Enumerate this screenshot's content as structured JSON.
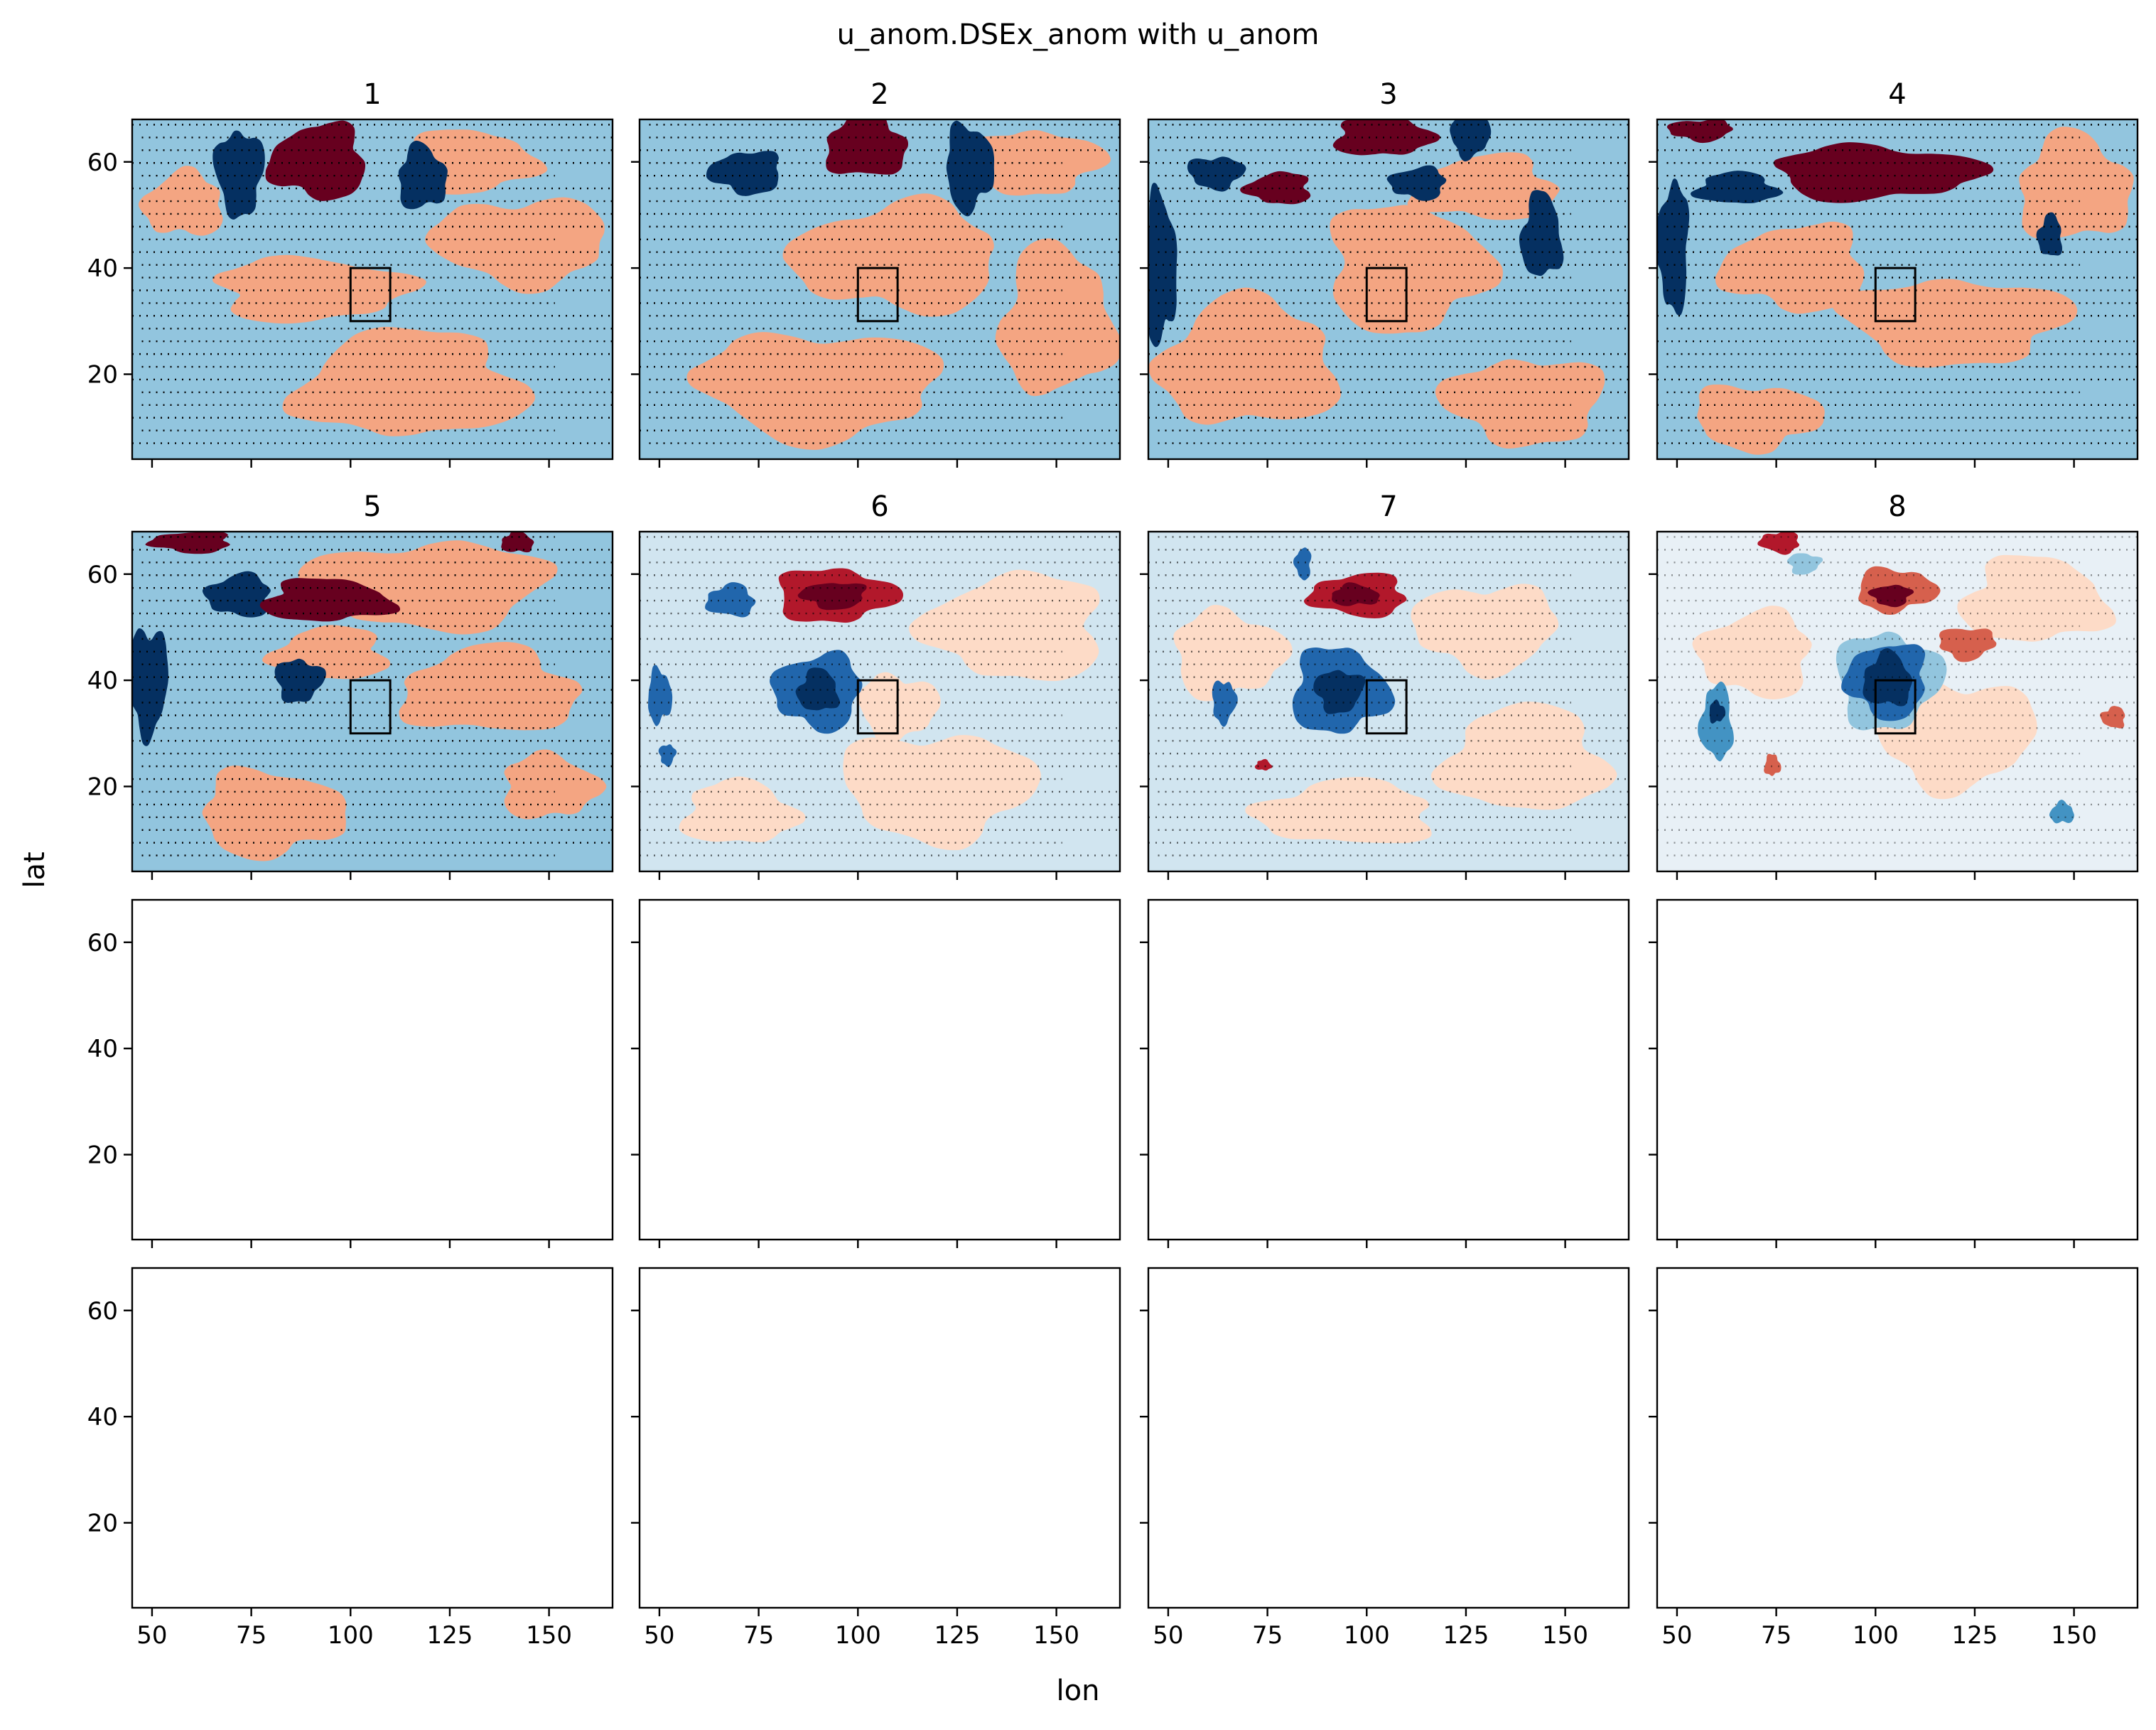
{
  "chart_data": {
    "type": "heatmap",
    "title": "u_anom.DSEx_anom with u_anom",
    "xlabel": "lon",
    "ylabel": "lat",
    "xlim": [
      45,
      166
    ],
    "ylim": [
      4,
      68
    ],
    "xticks": [
      50,
      75,
      100,
      125,
      150
    ],
    "yticks": [
      20,
      40,
      60
    ],
    "grid": false,
    "box_region": {
      "lon": [
        100,
        110
      ],
      "lat": [
        30,
        40
      ]
    },
    "colormap": [
      "#053061",
      "#2166ac",
      "#4393c3",
      "#92c5de",
      "#d1e5f0",
      "#f7f7f7",
      "#fddbc7",
      "#f4a582",
      "#d6604d",
      "#b2182b",
      "#67001f"
    ],
    "panels": [
      {
        "title": "1",
        "background": "#92c5de",
        "stipple_alpha": 1.0,
        "blobs": [
          {
            "lon": 115,
            "lat": 18,
            "rlon": 28,
            "rlat": 10,
            "color": "#f4a582"
          },
          {
            "lon": 90,
            "lat": 36,
            "rlon": 24,
            "rlat": 6,
            "color": "#f4a582"
          },
          {
            "lon": 143,
            "lat": 45,
            "rlon": 22,
            "rlat": 8,
            "color": "#f4a582"
          },
          {
            "lon": 58,
            "lat": 52,
            "rlon": 10,
            "rlat": 6,
            "color": "#f4a582"
          },
          {
            "lon": 130,
            "lat": 60,
            "rlon": 16,
            "rlat": 6,
            "color": "#f4a582"
          },
          {
            "lon": 72,
            "lat": 58,
            "rlon": 6,
            "rlat": 8,
            "color": "#053061"
          },
          {
            "lon": 92,
            "lat": 60,
            "rlon": 12,
            "rlat": 7,
            "color": "#67001f"
          },
          {
            "lon": 118,
            "lat": 57,
            "rlon": 6,
            "rlat": 6,
            "color": "#053061"
          }
        ]
      },
      {
        "title": "2",
        "background": "#92c5de",
        "stipple_alpha": 1.0,
        "blobs": [
          {
            "lon": 90,
            "lat": 18,
            "rlon": 30,
            "rlat": 10,
            "color": "#f4a582"
          },
          {
            "lon": 110,
            "lat": 42,
            "rlon": 26,
            "rlat": 10,
            "color": "#f4a582"
          },
          {
            "lon": 150,
            "lat": 30,
            "rlon": 14,
            "rlat": 14,
            "color": "#f4a582"
          },
          {
            "lon": 145,
            "lat": 60,
            "rlon": 16,
            "rlat": 6,
            "color": "#f4a582"
          },
          {
            "lon": 72,
            "lat": 58,
            "rlon": 9,
            "rlat": 4,
            "color": "#053061"
          },
          {
            "lon": 102,
            "lat": 63,
            "rlon": 10,
            "rlat": 6,
            "color": "#67001f"
          },
          {
            "lon": 128,
            "lat": 59,
            "rlon": 6,
            "rlat": 8,
            "color": "#053061"
          }
        ]
      },
      {
        "title": "3",
        "background": "#92c5de",
        "stipple_alpha": 1.0,
        "blobs": [
          {
            "lon": 70,
            "lat": 22,
            "rlon": 22,
            "rlat": 12,
            "color": "#f4a582"
          },
          {
            "lon": 110,
            "lat": 40,
            "rlon": 20,
            "rlat": 12,
            "color": "#f4a582"
          },
          {
            "lon": 140,
            "lat": 15,
            "rlon": 20,
            "rlat": 8,
            "color": "#f4a582"
          },
          {
            "lon": 130,
            "lat": 55,
            "rlon": 18,
            "rlat": 6,
            "color": "#f4a582"
          },
          {
            "lon": 48,
            "lat": 40,
            "rlon": 4,
            "rlat": 14,
            "color": "#053061"
          },
          {
            "lon": 62,
            "lat": 58,
            "rlon": 7,
            "rlat": 3,
            "color": "#053061"
          },
          {
            "lon": 78,
            "lat": 55,
            "rlon": 8,
            "rlat": 3,
            "color": "#67001f"
          },
          {
            "lon": 104,
            "lat": 65,
            "rlon": 12,
            "rlat": 4,
            "color": "#67001f"
          },
          {
            "lon": 126,
            "lat": 65,
            "rlon": 5,
            "rlat": 4,
            "color": "#053061"
          },
          {
            "lon": 113,
            "lat": 56,
            "rlon": 7,
            "rlat": 3,
            "color": "#053061"
          },
          {
            "lon": 144,
            "lat": 46,
            "rlon": 5,
            "rlat": 8,
            "color": "#053061"
          }
        ]
      },
      {
        "title": "4",
        "background": "#92c5de",
        "stipple_alpha": 1.0,
        "blobs": [
          {
            "lon": 120,
            "lat": 30,
            "rlon": 28,
            "rlat": 8,
            "color": "#f4a582"
          },
          {
            "lon": 80,
            "lat": 40,
            "rlon": 18,
            "rlat": 8,
            "color": "#f4a582"
          },
          {
            "lon": 150,
            "lat": 55,
            "rlon": 14,
            "rlat": 10,
            "color": "#f4a582"
          },
          {
            "lon": 70,
            "lat": 12,
            "rlon": 16,
            "rlat": 6,
            "color": "#f4a582"
          },
          {
            "lon": 49,
            "lat": 44,
            "rlon": 4,
            "rlat": 12,
            "color": "#053061"
          },
          {
            "lon": 65,
            "lat": 55,
            "rlon": 10,
            "rlat": 3,
            "color": "#053061"
          },
          {
            "lon": 100,
            "lat": 58,
            "rlon": 26,
            "rlat": 5,
            "color": "#67001f"
          },
          {
            "lon": 56,
            "lat": 66,
            "rlon": 8,
            "rlat": 2,
            "color": "#67001f"
          },
          {
            "lon": 144,
            "lat": 46,
            "rlon": 3,
            "rlat": 4,
            "color": "#053061"
          }
        ]
      },
      {
        "title": "5",
        "background": "#92c5de",
        "stipple_alpha": 1.0,
        "blobs": [
          {
            "lon": 135,
            "lat": 38,
            "rlon": 22,
            "rlat": 8,
            "color": "#f4a582"
          },
          {
            "lon": 80,
            "lat": 15,
            "rlon": 18,
            "rlat": 8,
            "color": "#f4a582"
          },
          {
            "lon": 120,
            "lat": 58,
            "rlon": 30,
            "rlat": 8,
            "color": "#f4a582"
          },
          {
            "lon": 95,
            "lat": 45,
            "rlon": 14,
            "rlat": 5,
            "color": "#f4a582"
          },
          {
            "lon": 150,
            "lat": 20,
            "rlon": 12,
            "rlat": 6,
            "color": "#f4a582"
          },
          {
            "lon": 49,
            "lat": 40,
            "rlon": 5,
            "rlat": 10,
            "color": "#053061"
          },
          {
            "lon": 72,
            "lat": 56,
            "rlon": 8,
            "rlat": 4,
            "color": "#053061"
          },
          {
            "lon": 94,
            "lat": 55,
            "rlon": 16,
            "rlat": 4,
            "color": "#67001f"
          },
          {
            "lon": 87,
            "lat": 40,
            "rlon": 6,
            "rlat": 4,
            "color": "#053061"
          },
          {
            "lon": 60,
            "lat": 66,
            "rlon": 10,
            "rlat": 2,
            "color": "#67001f"
          },
          {
            "lon": 142,
            "lat": 66,
            "rlon": 4,
            "rlat": 2,
            "color": "#67001f"
          }
        ]
      },
      {
        "title": "6",
        "background": "#d1e5f0",
        "stipple_alpha": 0.6,
        "blobs": [
          {
            "lon": 120,
            "lat": 20,
            "rlon": 24,
            "rlat": 10,
            "color": "#fddbc7"
          },
          {
            "lon": 140,
            "lat": 50,
            "rlon": 22,
            "rlat": 10,
            "color": "#fddbc7"
          },
          {
            "lon": 70,
            "lat": 15,
            "rlon": 14,
            "rlat": 6,
            "color": "#fddbc7"
          },
          {
            "lon": 110,
            "lat": 35,
            "rlon": 10,
            "rlat": 6,
            "color": "#fddbc7"
          },
          {
            "lon": 90,
            "lat": 38,
            "rlon": 11,
            "rlat": 7,
            "color": "#2166ac"
          },
          {
            "lon": 90,
            "lat": 38,
            "rlon": 5,
            "rlat": 4,
            "color": "#053061"
          },
          {
            "lon": 94,
            "lat": 56,
            "rlon": 15,
            "rlat": 5,
            "color": "#b2182b"
          },
          {
            "lon": 94,
            "lat": 56,
            "rlon": 8,
            "rlat": 2.5,
            "color": "#67001f"
          },
          {
            "lon": 68,
            "lat": 55,
            "rlon": 6,
            "rlat": 3,
            "color": "#2166ac"
          },
          {
            "lon": 50,
            "lat": 37,
            "rlon": 3,
            "rlat": 5,
            "color": "#2166ac"
          },
          {
            "lon": 52,
            "lat": 26,
            "rlon": 2,
            "rlat": 2,
            "color": "#2166ac"
          }
        ]
      },
      {
        "title": "7",
        "background": "#d1e5f0",
        "stipple_alpha": 0.6,
        "blobs": [
          {
            "lon": 140,
            "lat": 25,
            "rlon": 20,
            "rlat": 10,
            "color": "#fddbc7"
          },
          {
            "lon": 65,
            "lat": 45,
            "rlon": 14,
            "rlat": 8,
            "color": "#fddbc7"
          },
          {
            "lon": 130,
            "lat": 50,
            "rlon": 18,
            "rlat": 8,
            "color": "#fddbc7"
          },
          {
            "lon": 95,
            "lat": 15,
            "rlon": 22,
            "rlat": 6,
            "color": "#fddbc7"
          },
          {
            "lon": 93,
            "lat": 38,
            "rlon": 12,
            "rlat": 8,
            "color": "#2166ac"
          },
          {
            "lon": 93,
            "lat": 38,
            "rlon": 6,
            "rlat": 4,
            "color": "#053061"
          },
          {
            "lon": 98,
            "lat": 56,
            "rlon": 12,
            "rlat": 4,
            "color": "#b2182b"
          },
          {
            "lon": 97,
            "lat": 56,
            "rlon": 6,
            "rlat": 2,
            "color": "#67001f"
          },
          {
            "lon": 64,
            "lat": 36,
            "rlon": 3,
            "rlat": 4,
            "color": "#2166ac"
          },
          {
            "lon": 84,
            "lat": 62,
            "rlon": 2,
            "rlat": 3,
            "color": "#2166ac"
          },
          {
            "lon": 74,
            "lat": 24,
            "rlon": 2,
            "rlat": 1,
            "color": "#b2182b"
          }
        ]
      },
      {
        "title": "8",
        "background": "#e8f0f6",
        "stipple_alpha": 0.4,
        "blobs": [
          {
            "lon": 120,
            "lat": 30,
            "rlon": 20,
            "rlat": 10,
            "color": "#fddbc7"
          },
          {
            "lon": 70,
            "lat": 45,
            "rlon": 14,
            "rlat": 8,
            "color": "#fddbc7"
          },
          {
            "lon": 140,
            "lat": 55,
            "rlon": 18,
            "rlat": 8,
            "color": "#fddbc7"
          },
          {
            "lon": 103,
            "lat": 40,
            "rlon": 13,
            "rlat": 9,
            "color": "#92c5de"
          },
          {
            "lon": 103,
            "lat": 40,
            "rlon": 10,
            "rlat": 7,
            "color": "#2166ac"
          },
          {
            "lon": 103,
            "lat": 40,
            "rlon": 6,
            "rlat": 5,
            "color": "#053061"
          },
          {
            "lon": 105,
            "lat": 57,
            "rlon": 10,
            "rlat": 4,
            "color": "#d6604d"
          },
          {
            "lon": 104,
            "lat": 56,
            "rlon": 5,
            "rlat": 2,
            "color": "#67001f"
          },
          {
            "lon": 60,
            "lat": 32,
            "rlon": 4,
            "rlat": 7,
            "color": "#4393c3"
          },
          {
            "lon": 60,
            "lat": 34,
            "rlon": 2,
            "rlat": 2,
            "color": "#053061"
          },
          {
            "lon": 123,
            "lat": 47,
            "rlon": 7,
            "rlat": 3,
            "color": "#d6604d"
          },
          {
            "lon": 160,
            "lat": 33,
            "rlon": 3,
            "rlat": 2,
            "color": "#d6604d"
          },
          {
            "lon": 74,
            "lat": 24,
            "rlon": 2,
            "rlat": 2,
            "color": "#d6604d"
          },
          {
            "lon": 82,
            "lat": 62,
            "rlon": 4,
            "rlat": 2,
            "color": "#92c5de"
          },
          {
            "lon": 76,
            "lat": 66,
            "rlon": 5,
            "rlat": 2,
            "color": "#b2182b"
          },
          {
            "lon": 147,
            "lat": 15,
            "rlon": 3,
            "rlat": 2,
            "color": "#4393c3"
          }
        ]
      },
      {
        "title": "",
        "empty": true
      },
      {
        "title": "",
        "empty": true
      },
      {
        "title": "",
        "empty": true
      },
      {
        "title": "",
        "empty": true
      },
      {
        "title": "",
        "empty": true
      },
      {
        "title": "",
        "empty": true
      },
      {
        "title": "",
        "empty": true
      },
      {
        "title": "",
        "empty": true
      }
    ]
  }
}
